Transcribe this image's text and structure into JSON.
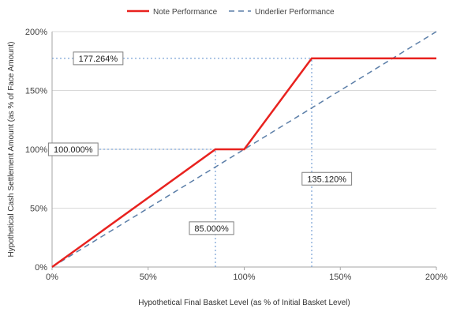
{
  "chart_data": {
    "type": "line",
    "xlabel": "Hypothetical Final Basket Level (as % of Initial Basket Level)",
    "ylabel": "Hypothetical Cash Settlement Amount (as % of Face Amount)",
    "xlim": [
      0,
      200
    ],
    "ylim": [
      0,
      200
    ],
    "x_ticks": [
      0,
      50,
      100,
      150,
      200
    ],
    "y_ticks": [
      0,
      50,
      100,
      150,
      200
    ],
    "x_tick_labels": [
      "0%",
      "50%",
      "100%",
      "150%",
      "200%"
    ],
    "y_tick_labels": [
      "0%",
      "50%",
      "100%",
      "150%",
      "200%"
    ],
    "grid": "horizontal",
    "legend_position": "top",
    "series": [
      {
        "name": "Note Performance",
        "color": "#e8221f",
        "style": "solid",
        "x": [
          0,
          85,
          100,
          135.12,
          200
        ],
        "y": [
          0,
          100,
          100,
          177.264,
          177.264
        ]
      },
      {
        "name": "Underlier Performance",
        "color": "#5b7ea8",
        "style": "dashed",
        "x": [
          0,
          200
        ],
        "y": [
          0,
          200
        ]
      }
    ],
    "reference_lines": [
      {
        "axis": "y",
        "value": 177.264,
        "x_from": 0,
        "x_to": 135.12
      },
      {
        "axis": "y",
        "value": 100,
        "x_from": 0,
        "x_to": 85
      },
      {
        "axis": "x",
        "value": 85,
        "y_from": 0,
        "y_to": 100
      },
      {
        "axis": "x",
        "value": 135.12,
        "y_from": 0,
        "y_to": 177.264
      }
    ],
    "annotations": [
      {
        "text": "177.264%",
        "x": 24,
        "y": 177.264
      },
      {
        "text": "100.000%",
        "x": 11,
        "y": 100
      },
      {
        "text": "85.000%",
        "x": 83,
        "y": 33
      },
      {
        "text": "135.120%",
        "x": 143,
        "y": 75
      }
    ]
  }
}
